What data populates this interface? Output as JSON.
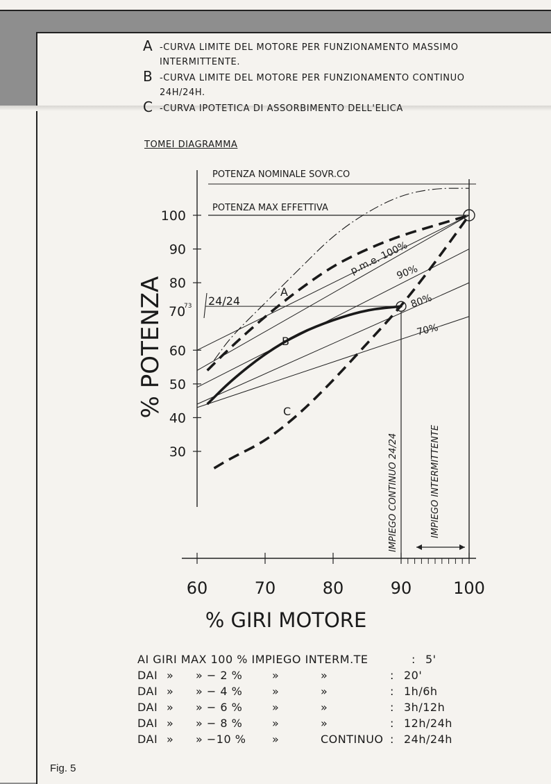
{
  "legend": [
    {
      "key": "A",
      "text": "-CURVA LIMITE DEL MOTORE PER FUNZIONAMENTO MASSIMO INTERMITTENTE."
    },
    {
      "key": "B",
      "text": "-CURVA LIMITE DEL MOTORE PER FUNZIONAMENTO CONTINUO 24h/24h."
    },
    {
      "key": "C",
      "text": "-CURVA IPOTETICA DI ASSORBIMENTO DELL'ELICA"
    }
  ],
  "subtitle": "TOMEI DIAGRAMMA",
  "chart_data": {
    "type": "line",
    "xlabel": "% GIRI MOTORE",
    "ylabel": "% POTENZA",
    "x_ticks": [
      60,
      70,
      80,
      90,
      100
    ],
    "y_ticks": [
      30,
      40,
      50,
      60,
      70,
      80,
      90,
      100
    ],
    "y_tick_labels": [
      "30",
      "40",
      "50",
      "60",
      "70",
      "80",
      "90",
      "100"
    ],
    "y_special_tick": {
      "label": "70",
      "sup": "73",
      "value": 73
    },
    "xlim": [
      60,
      100
    ],
    "ylim": [
      25,
      110
    ],
    "reference_lines": {
      "potenza_nominale": {
        "label": "POTENZA NOMINALE SOVR.CO",
        "value": 108
      },
      "potenza_max": {
        "label": "POTENZA MAX EFFETTIVA",
        "value": 100
      },
      "continuo": {
        "label": "24/24",
        "value": 73
      }
    },
    "series": [
      {
        "name": "A",
        "style": "dashed",
        "x": [
          61.5,
          65,
          70,
          75,
          80,
          85,
          90,
          95,
          100
        ],
        "y": [
          54,
          61,
          70,
          78,
          85,
          90,
          94,
          97,
          100
        ]
      },
      {
        "name": "B",
        "style": "solid",
        "x": [
          61.5,
          65,
          70,
          75,
          80,
          85,
          90
        ],
        "y": [
          44,
          51,
          59,
          65,
          69,
          72,
          73
        ]
      },
      {
        "name": "C",
        "style": "dashed",
        "x": [
          62.5,
          65,
          70,
          75,
          80,
          85,
          90,
          95,
          100
        ],
        "y": [
          25,
          28,
          33,
          41,
          51,
          62,
          73,
          86,
          100
        ]
      },
      {
        "name": "",
        "style": "dashdot",
        "x": [
          62.5,
          65,
          70,
          75,
          80,
          85,
          90,
          95,
          100
        ],
        "y": [
          57,
          64,
          74,
          84,
          94,
          101,
          106,
          108,
          108
        ]
      }
    ],
    "pme_lines": [
      {
        "label": "p.m.e. 100%",
        "y0": 54,
        "y1": 100
      },
      {
        "label": "90%",
        "y0": 49,
        "y1": 90
      },
      {
        "label": "80%",
        "y0": 44,
        "y1": 80
      },
      {
        "label": "70%",
        "y0": 43,
        "y1": 70
      }
    ],
    "extra_line": {
      "y0": 60,
      "y1": 100
    },
    "region_labels": [
      {
        "label": "IMPIEGO CONTINUO 24/24",
        "x": 90
      },
      {
        "label": "IMPIEGO INTERMITTENTE",
        "x": 95
      }
    ]
  },
  "table": {
    "rows": [
      [
        "AI GIRI MAX 100 % IMPIEGO INTERM.TE",
        "",
        "",
        "",
        "",
        ":",
        "5'"
      ],
      [
        "DAI",
        "»",
        "» − 2 %",
        "»",
        "»",
        ":",
        "20'"
      ],
      [
        "DAI",
        "»",
        "» − 4 %",
        "»",
        "»",
        ":",
        "1h/6h"
      ],
      [
        "DAI",
        "»",
        "» − 6 %",
        "»",
        "»",
        ":",
        "3h/12h"
      ],
      [
        "DAI",
        "»",
        "» − 8 %",
        "»",
        "»",
        ":",
        "12h/24h"
      ],
      [
        "DAI",
        "»",
        "» −10 %",
        "»",
        "CONTINUO",
        ":",
        "24h/24h"
      ]
    ]
  },
  "figure_label": "Fig. 5"
}
